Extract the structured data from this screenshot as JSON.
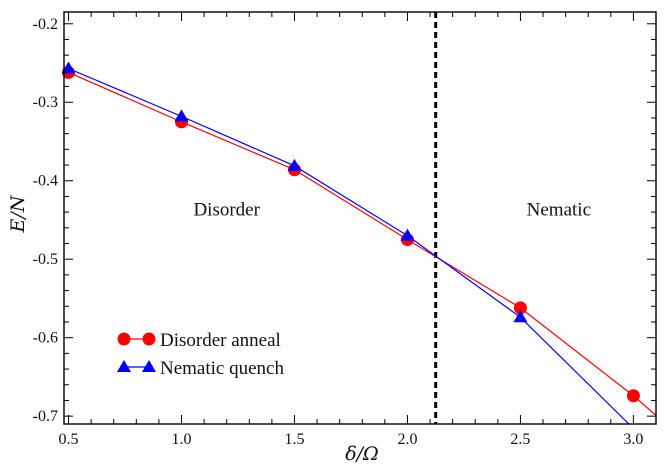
{
  "chart_data": {
    "type": "line",
    "xlabel": "δ/Ω",
    "ylabel": "E/N",
    "xlim": [
      0.48,
      3.1
    ],
    "ylim": [
      -0.71,
      -0.185
    ],
    "x_ticks": [
      0.5,
      1.0,
      1.5,
      2.0,
      2.5,
      3.0
    ],
    "x_tick_labels": [
      "0.5",
      "1.0",
      "1.5",
      "2.0",
      "2.5",
      "3.0"
    ],
    "y_ticks": [
      -0.2,
      -0.3,
      -0.4,
      -0.5,
      -0.6,
      -0.7
    ],
    "y_tick_labels": [
      "-0.2",
      "-0.3",
      "-0.4",
      "-0.5",
      "-0.6",
      "-0.7"
    ],
    "grid": false,
    "legend_position": "bottom-left",
    "series": [
      {
        "name": "Disorder anneal",
        "color": "#ff0000",
        "marker": "circle",
        "x": [
          0.5,
          1.0,
          1.5,
          2.0,
          2.5,
          3.0
        ],
        "y": [
          -0.262,
          -0.325,
          -0.386,
          -0.475,
          -0.562,
          -0.674
        ],
        "line_end": {
          "x": 3.1,
          "y": -0.699
        }
      },
      {
        "name": "Nematic quench",
        "color": "#0000ff",
        "marker": "triangle",
        "x": [
          0.5,
          1.0,
          1.5,
          2.0,
          2.5
        ],
        "y": [
          -0.257,
          -0.318,
          -0.381,
          -0.47,
          -0.574
        ],
        "line_end": {
          "x": 2.98,
          "y": -0.71
        }
      }
    ],
    "vline": {
      "x": 2.125,
      "style": "dashed"
    },
    "annotations": [
      {
        "text": "Disorder",
        "x": 1.2,
        "y": -0.444
      },
      {
        "text": "Nematic",
        "x": 2.67,
        "y": -0.444
      }
    ]
  }
}
